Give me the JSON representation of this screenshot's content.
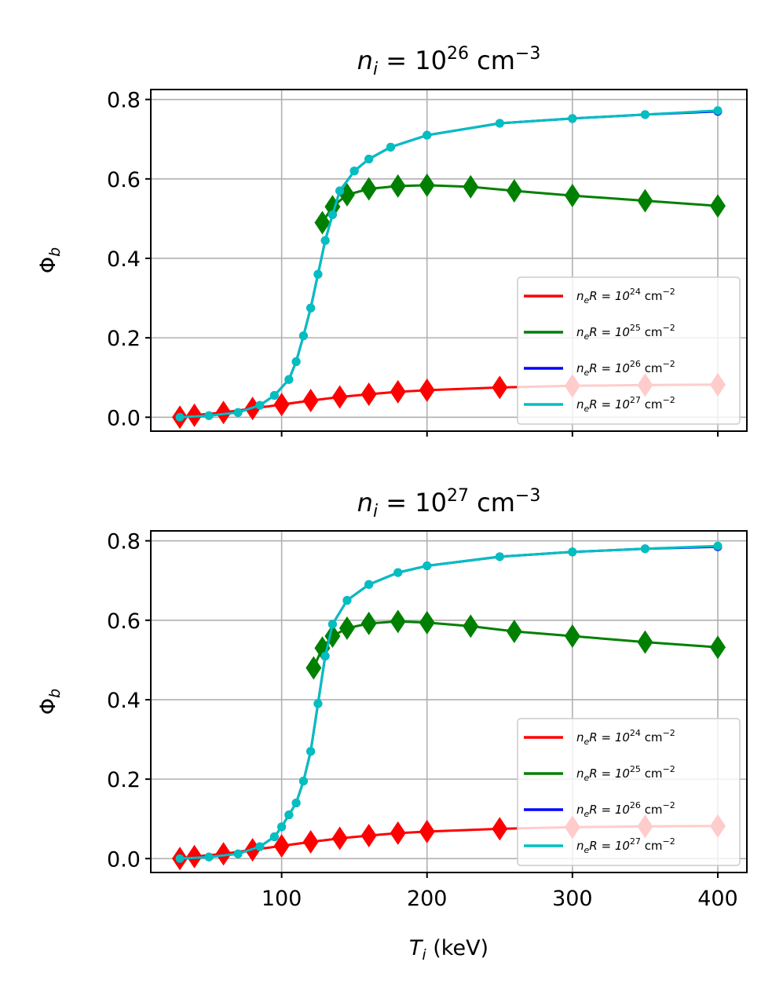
{
  "chart_data": [
    {
      "type": "line",
      "title_main": "n",
      "title_sub": "i",
      "title_mid": " = 10",
      "title_exp": "26",
      "title_unit": " cm",
      "title_unit_exp": "−3",
      "ylabel_main": "Φ",
      "ylabel_sub": "b",
      "xlabel_main": "",
      "xlabel_sub": "",
      "xlabel_unit": "",
      "xlim": [
        10,
        420
      ],
      "ylim": [
        -0.035,
        0.825
      ],
      "xticks": [
        100,
        200,
        300,
        400
      ],
      "xtick_labels": [
        "",
        "",
        "",
        ""
      ],
      "yticks": [
        0.0,
        0.2,
        0.4,
        0.6,
        0.8
      ],
      "ytick_labels": [
        "0.0",
        "0.2",
        "0.4",
        "0.6",
        "0.8"
      ],
      "legend": [
        {
          "pre": "n",
          "sub": "e",
          "mid": "R = 10",
          "exp": "24",
          "unit": " cm",
          "unit_exp": "−2"
        },
        {
          "pre": "n",
          "sub": "e",
          "mid": "R = 10",
          "exp": "25",
          "unit": " cm",
          "unit_exp": "−2"
        },
        {
          "pre": "n",
          "sub": "e",
          "mid": "R = 10",
          "exp": "26",
          "unit": " cm",
          "unit_exp": "−2"
        },
        {
          "pre": "n",
          "sub": "e",
          "mid": "R = 10",
          "exp": "27",
          "unit": " cm",
          "unit_exp": "−2"
        }
      ],
      "legend_position": "lower-right",
      "series": [
        {
          "name": "neR = 10^24 cm^-2",
          "color": "#ff0000",
          "marker": "diamond",
          "x": [
            30,
            40,
            60,
            80,
            100,
            120,
            140,
            160,
            180,
            200,
            250,
            300,
            350,
            400
          ],
          "y": [
            0.0,
            0.005,
            0.012,
            0.022,
            0.032,
            0.042,
            0.051,
            0.058,
            0.064,
            0.068,
            0.075,
            0.079,
            0.081,
            0.082
          ]
        },
        {
          "name": "neR = 10^25 cm^-2",
          "color": "#008000",
          "marker": "diamond",
          "x": [
            128,
            135,
            145,
            160,
            180,
            200,
            230,
            260,
            300,
            350,
            400
          ],
          "y": [
            0.49,
            0.53,
            0.56,
            0.575,
            0.582,
            0.584,
            0.58,
            0.57,
            0.558,
            0.545,
            0.532
          ]
        },
        {
          "name": "neR = 10^26 cm^-2",
          "color": "#0000ff",
          "marker": "circle",
          "x": [
            30,
            50,
            70,
            85,
            95,
            105,
            110,
            115,
            120,
            125,
            130,
            135,
            140,
            150,
            160,
            175,
            200,
            250,
            300,
            350,
            400
          ],
          "y": [
            0.0,
            0.004,
            0.012,
            0.03,
            0.055,
            0.095,
            0.14,
            0.205,
            0.275,
            0.36,
            0.445,
            0.51,
            0.57,
            0.62,
            0.65,
            0.68,
            0.71,
            0.74,
            0.752,
            0.762,
            0.77
          ]
        },
        {
          "name": "neR = 10^27 cm^-2",
          "color": "#00bfbf",
          "marker": "circle",
          "x": [
            30,
            50,
            70,
            85,
            95,
            105,
            110,
            115,
            120,
            125,
            130,
            135,
            140,
            150,
            160,
            175,
            200,
            250,
            300,
            350,
            400
          ],
          "y": [
            0.0,
            0.004,
            0.012,
            0.03,
            0.055,
            0.095,
            0.14,
            0.205,
            0.275,
            0.36,
            0.445,
            0.51,
            0.57,
            0.62,
            0.65,
            0.68,
            0.71,
            0.74,
            0.752,
            0.762,
            0.772
          ]
        }
      ]
    },
    {
      "type": "line",
      "title_main": "n",
      "title_sub": "i",
      "title_mid": " = 10",
      "title_exp": "27",
      "title_unit": " cm",
      "title_unit_exp": "−3",
      "ylabel_main": "Φ",
      "ylabel_sub": "b",
      "xlabel_main": "T",
      "xlabel_sub": "i",
      "xlabel_unit": " (keV)",
      "xlim": [
        10,
        420
      ],
      "ylim": [
        -0.035,
        0.825
      ],
      "xticks": [
        100,
        200,
        300,
        400
      ],
      "xtick_labels": [
        "100",
        "200",
        "300",
        "400"
      ],
      "yticks": [
        0.0,
        0.2,
        0.4,
        0.6,
        0.8
      ],
      "ytick_labels": [
        "0.0",
        "0.2",
        "0.4",
        "0.6",
        "0.8"
      ],
      "legend": [
        {
          "pre": "n",
          "sub": "e",
          "mid": "R = 10",
          "exp": "24",
          "unit": " cm",
          "unit_exp": "−2"
        },
        {
          "pre": "n",
          "sub": "e",
          "mid": "R = 10",
          "exp": "25",
          "unit": " cm",
          "unit_exp": "−2"
        },
        {
          "pre": "n",
          "sub": "e",
          "mid": "R = 10",
          "exp": "26",
          "unit": " cm",
          "unit_exp": "−2"
        },
        {
          "pre": "n",
          "sub": "e",
          "mid": "R = 10",
          "exp": "27",
          "unit": " cm",
          "unit_exp": "−2"
        }
      ],
      "legend_position": "lower-right",
      "series": [
        {
          "name": "neR = 10^24 cm^-2",
          "color": "#ff0000",
          "marker": "diamond",
          "x": [
            30,
            40,
            60,
            80,
            100,
            120,
            140,
            160,
            180,
            200,
            250,
            300,
            350,
            400
          ],
          "y": [
            0.0,
            0.005,
            0.012,
            0.022,
            0.032,
            0.042,
            0.051,
            0.058,
            0.064,
            0.068,
            0.075,
            0.079,
            0.081,
            0.082
          ]
        },
        {
          "name": "neR = 10^25 cm^-2",
          "color": "#008000",
          "marker": "diamond",
          "x": [
            122,
            128,
            135,
            145,
            160,
            180,
            200,
            230,
            260,
            300,
            350,
            400
          ],
          "y": [
            0.48,
            0.53,
            0.56,
            0.58,
            0.592,
            0.597,
            0.594,
            0.585,
            0.572,
            0.56,
            0.545,
            0.532
          ]
        },
        {
          "name": "neR = 10^26 cm^-2",
          "color": "#0000ff",
          "marker": "circle",
          "x": [
            30,
            50,
            70,
            85,
            95,
            100,
            105,
            110,
            115,
            120,
            125,
            130,
            135,
            145,
            160,
            180,
            200,
            250,
            300,
            350,
            400
          ],
          "y": [
            0.0,
            0.004,
            0.012,
            0.03,
            0.055,
            0.08,
            0.11,
            0.14,
            0.195,
            0.27,
            0.39,
            0.51,
            0.59,
            0.65,
            0.69,
            0.72,
            0.737,
            0.76,
            0.772,
            0.78,
            0.785
          ]
        },
        {
          "name": "neR = 10^27 cm^-2",
          "color": "#00bfbf",
          "marker": "circle",
          "x": [
            30,
            50,
            70,
            85,
            95,
            100,
            105,
            110,
            115,
            120,
            125,
            130,
            135,
            145,
            160,
            180,
            200,
            250,
            300,
            350,
            400
          ],
          "y": [
            0.0,
            0.004,
            0.012,
            0.03,
            0.055,
            0.08,
            0.11,
            0.14,
            0.195,
            0.27,
            0.39,
            0.51,
            0.59,
            0.65,
            0.69,
            0.72,
            0.737,
            0.76,
            0.772,
            0.78,
            0.787
          ]
        }
      ]
    }
  ]
}
